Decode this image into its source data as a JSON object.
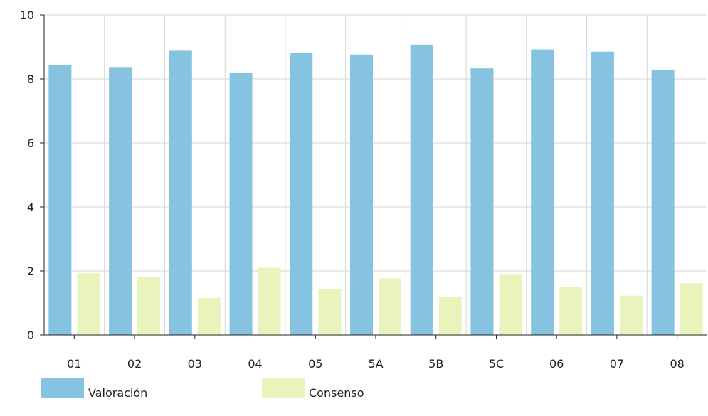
{
  "chart_data": {
    "type": "bar",
    "categories": [
      "01",
      "02",
      "03",
      "04",
      "05",
      "5A",
      "5B",
      "5C",
      "06",
      "07",
      "08"
    ],
    "series": [
      {
        "name": "Valoración",
        "color": "#86c3e0",
        "values": [
          8.44,
          8.37,
          8.88,
          8.18,
          8.8,
          8.76,
          9.07,
          8.33,
          8.92,
          8.85,
          8.29
        ]
      },
      {
        "name": "Consenso",
        "color": "#e8f4bc",
        "values": [
          1.93,
          1.81,
          1.16,
          2.1,
          1.43,
          1.77,
          1.2,
          1.88,
          1.5,
          1.23,
          1.62
        ]
      }
    ],
    "ylim": [
      0,
      10
    ],
    "yticks": [
      "0",
      "2",
      "4",
      "6",
      "8",
      "10"
    ],
    "grid": true,
    "legend_position": "bottom-left"
  }
}
